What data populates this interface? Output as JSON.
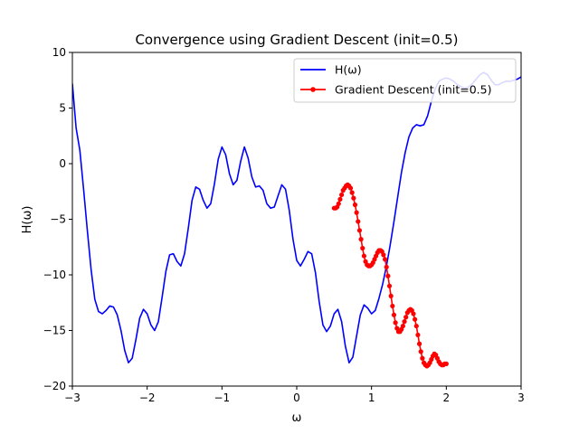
{
  "chart_data": {
    "type": "line",
    "title": "Convergence using Gradient Descent (init=0.5)",
    "xlabel": "ω",
    "ylabel": "H(ω)",
    "xlim": [
      -3,
      3
    ],
    "ylim": [
      -20,
      10
    ],
    "x_ticks": [
      -3,
      -2,
      -1,
      0,
      1,
      2,
      3
    ],
    "y_ticks": [
      -20,
      -15,
      -10,
      -5,
      0,
      5,
      10
    ],
    "x_tick_labels": [
      "−3",
      "−2",
      "−1",
      "0",
      "1",
      "2",
      "3"
    ],
    "y_tick_labels": [
      "−20",
      "−15",
      "−10",
      "−5",
      "0",
      "5",
      "10"
    ],
    "grid": false,
    "legend_position": "top-right",
    "series": [
      {
        "name": "H(ω)",
        "color": "#0000ff",
        "marker": "none",
        "x": [
          -3.0,
          -2.95,
          -2.9,
          -2.85,
          -2.8,
          -2.75,
          -2.7,
          -2.65,
          -2.6,
          -2.55,
          -2.5,
          -2.45,
          -2.4,
          -2.35,
          -2.3,
          -2.25,
          -2.2,
          -2.15,
          -2.1,
          -2.05,
          -2.0,
          -1.95,
          -1.9,
          -1.85,
          -1.8,
          -1.75,
          -1.7,
          -1.65,
          -1.6,
          -1.55,
          -1.5,
          -1.45,
          -1.4,
          -1.35,
          -1.3,
          -1.25,
          -1.2,
          -1.15,
          -1.1,
          -1.05,
          -1.0,
          -0.95,
          -0.9,
          -0.85,
          -0.8,
          -0.75,
          -0.7,
          -0.65,
          -0.6,
          -0.55,
          -0.5,
          -0.45,
          -0.4,
          -0.35,
          -0.3,
          -0.25,
          -0.2,
          -0.15,
          -0.1,
          -0.05,
          0.0,
          0.05,
          0.1,
          0.15,
          0.2,
          0.25,
          0.3,
          0.35,
          0.4,
          0.45,
          0.5,
          0.55,
          0.6,
          0.65,
          0.7,
          0.75,
          0.8,
          0.85,
          0.9,
          0.95,
          1.0,
          1.05,
          1.1,
          1.15,
          1.2,
          1.25,
          1.3,
          1.35,
          1.4,
          1.45,
          1.5,
          1.55,
          1.6,
          1.65,
          1.7,
          1.75,
          1.8,
          1.85,
          1.9,
          1.95,
          2.0,
          2.05,
          2.1,
          2.15,
          2.2,
          2.25,
          2.3,
          2.35,
          2.4,
          2.45,
          2.5,
          2.55,
          2.6,
          2.65,
          2.7,
          2.75,
          2.8,
          2.85,
          2.9,
          2.95,
          3.0
        ],
        "y": [
          7.2,
          3.2,
          1.2,
          -2.3,
          -6.0,
          -9.5,
          -12.2,
          -13.3,
          -13.5,
          -13.2,
          -12.8,
          -12.9,
          -13.6,
          -15.0,
          -16.8,
          -17.9,
          -17.5,
          -15.8,
          -13.9,
          -13.1,
          -13.5,
          -14.5,
          -15.0,
          -14.2,
          -12.0,
          -9.7,
          -8.2,
          -8.1,
          -8.8,
          -9.2,
          -8.1,
          -5.8,
          -3.3,
          -2.1,
          -2.3,
          -3.3,
          -4.0,
          -3.6,
          -1.8,
          0.4,
          1.5,
          0.8,
          -0.9,
          -1.9,
          -1.5,
          0.2,
          1.5,
          0.5,
          -1.2,
          -2.1,
          -2.0,
          -2.4,
          -3.6,
          -4.0,
          -3.9,
          -2.9,
          -1.9,
          -2.3,
          -4.2,
          -6.8,
          -8.7,
          -9.2,
          -8.6,
          -7.9,
          -8.1,
          -9.8,
          -12.4,
          -14.5,
          -15.1,
          -14.6,
          -13.5,
          -13.1,
          -14.2,
          -16.4,
          -17.9,
          -17.4,
          -15.5,
          -13.6,
          -12.7,
          -13.0,
          -13.5,
          -13.2,
          -12.1,
          -10.8,
          -9.2,
          -7.3,
          -5.2,
          -3.0,
          -0.8,
          1.0,
          2.4,
          3.2,
          3.5,
          3.4,
          3.5,
          4.3,
          5.6,
          6.7,
          7.4,
          7.6,
          7.7,
          7.6,
          7.4,
          7.1,
          6.9,
          6.8,
          6.9,
          7.2,
          7.6,
          8.0,
          8.2,
          8.0,
          7.5,
          7.1,
          7.1,
          7.3,
          7.4,
          7.4,
          7.5,
          7.6,
          7.8
        ]
      },
      {
        "name": "Gradient Descent (init=0.5)",
        "color": "#ff0000",
        "marker": "dot",
        "x": [
          0.5,
          0.52,
          0.54,
          0.56,
          0.58,
          0.6,
          0.62,
          0.64,
          0.66,
          0.68,
          0.7,
          0.72,
          0.74,
          0.76,
          0.78,
          0.8,
          0.82,
          0.84,
          0.86,
          0.88,
          0.9,
          0.92,
          0.94,
          0.96,
          0.98,
          1.0,
          1.02,
          1.04,
          1.06,
          1.08,
          1.1,
          1.12,
          1.14,
          1.16,
          1.18,
          1.2,
          1.22,
          1.24,
          1.26,
          1.28,
          1.3,
          1.32,
          1.34,
          1.36,
          1.38,
          1.4,
          1.42,
          1.44,
          1.46,
          1.48,
          1.5,
          1.52,
          1.54,
          1.56,
          1.58,
          1.6,
          1.62,
          1.64,
          1.66,
          1.68,
          1.7,
          1.72,
          1.74,
          1.76,
          1.78,
          1.8,
          1.82,
          1.84,
          1.86,
          1.88,
          1.9,
          1.92,
          1.94,
          1.96,
          1.98,
          2.0
        ],
        "y": [
          -4.0,
          -4.0,
          -3.9,
          -3.6,
          -3.2,
          -2.8,
          -2.4,
          -2.2,
          -2.0,
          -1.9,
          -2.0,
          -2.2,
          -2.6,
          -3.1,
          -3.7,
          -4.4,
          -5.2,
          -6.0,
          -6.8,
          -7.6,
          -8.3,
          -8.8,
          -9.1,
          -9.2,
          -9.2,
          -9.1,
          -8.9,
          -8.6,
          -8.3,
          -8.0,
          -7.8,
          -7.8,
          -7.9,
          -8.2,
          -8.6,
          -9.3,
          -10.1,
          -11.0,
          -11.9,
          -12.8,
          -13.6,
          -14.3,
          -14.8,
          -15.1,
          -15.1,
          -14.9,
          -14.6,
          -14.2,
          -13.8,
          -13.4,
          -13.2,
          -13.1,
          -13.2,
          -13.5,
          -14.0,
          -14.6,
          -15.4,
          -16.2,
          -16.9,
          -17.5,
          -17.9,
          -18.1,
          -18.2,
          -18.1,
          -17.9,
          -17.6,
          -17.3,
          -17.1,
          -17.2,
          -17.5,
          -17.8,
          -18.0,
          -18.1,
          -18.1,
          -18.0,
          -18.0
        ]
      }
    ]
  }
}
